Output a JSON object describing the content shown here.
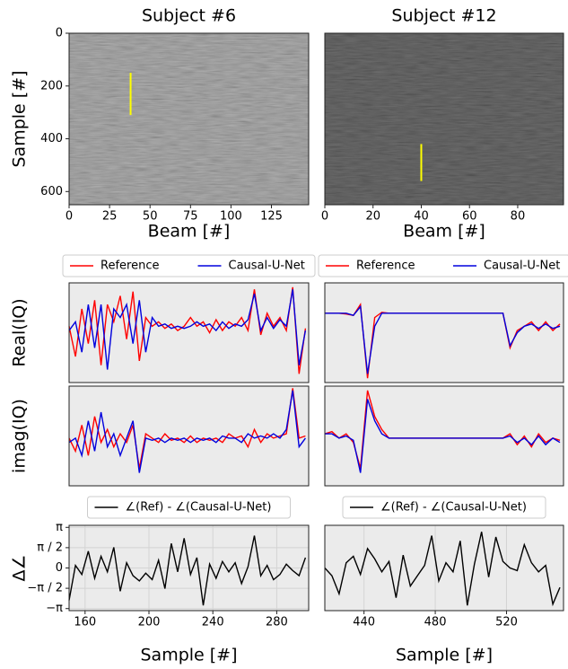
{
  "chart_data": [
    {
      "type": "image",
      "title": "Subject #6",
      "xlabel": "Beam [#]",
      "ylabel": "Sample [#]",
      "xlim": [
        0,
        148
      ],
      "ylim": [
        650,
        0
      ],
      "xticks": [
        0,
        25,
        50,
        75,
        100,
        125
      ],
      "yticks": [
        0,
        200,
        400,
        600
      ],
      "marker": {
        "x": 38,
        "y": [
          150,
          310
        ],
        "color": "#ffff00"
      },
      "shade": "#8a8a8a"
    },
    {
      "type": "image",
      "title": "Subject #12",
      "xlabel": "Beam [#]",
      "xlim": [
        0,
        99
      ],
      "ylim": [
        650,
        0
      ],
      "xticks": [
        0,
        20,
        40,
        60,
        80
      ],
      "marker": {
        "x": 40,
        "y": [
          420,
          560
        ],
        "color": "#ffff00"
      },
      "shade": "#3a3a3a"
    },
    {
      "type": "line",
      "ylabel": "Real(IQ)",
      "legend": true,
      "xlim": [
        150,
        300
      ],
      "ylim": [
        -1.2,
        1.1
      ],
      "x": [
        150,
        154,
        158,
        162,
        166,
        170,
        174,
        178,
        182,
        186,
        190,
        194,
        198,
        202,
        206,
        210,
        214,
        218,
        222,
        226,
        230,
        234,
        238,
        242,
        246,
        250,
        254,
        258,
        262,
        266,
        270,
        274,
        278,
        282,
        286,
        290,
        294,
        298
      ],
      "series": [
        {
          "name": "Reference",
          "color": "#ff0000",
          "values": [
            0.1,
            -0.6,
            0.5,
            -0.3,
            0.7,
            -0.8,
            0.6,
            0.2,
            0.8,
            -0.2,
            0.9,
            -0.7,
            0.3,
            0.1,
            0.2,
            0.05,
            0.15,
            0.0,
            0.1,
            0.3,
            0.1,
            0.2,
            -0.05,
            0.25,
            0.0,
            0.2,
            0.1,
            0.3,
            0.0,
            0.95,
            -0.1,
            0.4,
            0.1,
            0.3,
            0.0,
            1.0,
            -1.0,
            0.05
          ]
        },
        {
          "name": "Causal-U-Net",
          "color": "#0000dd",
          "values": [
            0.0,
            0.2,
            -0.5,
            0.6,
            -0.4,
            0.6,
            -0.9,
            0.5,
            0.3,
            0.6,
            -0.3,
            0.7,
            -0.5,
            0.3,
            0.1,
            0.15,
            0.05,
            0.1,
            0.05,
            0.1,
            0.2,
            0.1,
            0.15,
            0.0,
            0.2,
            0.05,
            0.15,
            0.1,
            0.25,
            0.85,
            0.0,
            0.3,
            0.05,
            0.25,
            0.1,
            0.95,
            -0.8,
            0.0
          ]
        }
      ]
    },
    {
      "type": "line",
      "legend": true,
      "xlim": [
        418,
        552
      ],
      "ylim": [
        -1.2,
        1.1
      ],
      "x": [
        418,
        422,
        426,
        430,
        434,
        438,
        442,
        446,
        450,
        454,
        458,
        462,
        466,
        470,
        474,
        478,
        482,
        486,
        490,
        494,
        498,
        502,
        506,
        510,
        514,
        518,
        522,
        526,
        530,
        534,
        538,
        542,
        546,
        550
      ],
      "series": [
        {
          "name": "Reference",
          "color": "#ff0000",
          "values": [
            0.4,
            0.4,
            0.4,
            0.38,
            0.35,
            0.6,
            -1.1,
            0.3,
            0.42,
            0.4,
            0.4,
            0.4,
            0.4,
            0.4,
            0.4,
            0.4,
            0.4,
            0.4,
            0.4,
            0.4,
            0.4,
            0.4,
            0.4,
            0.4,
            0.4,
            0.4,
            -0.4,
            0.0,
            0.1,
            0.2,
            0.0,
            0.2,
            0.0,
            0.15
          ]
        },
        {
          "name": "Causal-U-Net",
          "color": "#0000dd",
          "values": [
            0.4,
            0.4,
            0.4,
            0.4,
            0.35,
            0.55,
            -1.0,
            0.1,
            0.4,
            0.4,
            0.4,
            0.4,
            0.4,
            0.4,
            0.4,
            0.4,
            0.4,
            0.4,
            0.4,
            0.4,
            0.4,
            0.4,
            0.4,
            0.4,
            0.4,
            0.4,
            -0.35,
            -0.05,
            0.1,
            0.15,
            0.05,
            0.15,
            0.05,
            0.1
          ]
        }
      ]
    },
    {
      "type": "line",
      "ylabel": "imag(IQ)",
      "xlim": [
        150,
        300
      ],
      "ylim": [
        -1.0,
        1.3
      ],
      "x": [
        150,
        154,
        158,
        162,
        166,
        170,
        174,
        178,
        182,
        186,
        190,
        194,
        198,
        202,
        206,
        210,
        214,
        218,
        222,
        226,
        230,
        234,
        238,
        242,
        246,
        250,
        254,
        258,
        262,
        266,
        270,
        274,
        278,
        282,
        286,
        290,
        294,
        298
      ],
      "series": [
        {
          "name": "Reference",
          "color": "#ff0000",
          "values": [
            0.1,
            -0.2,
            0.4,
            -0.3,
            0.6,
            0.0,
            0.3,
            -0.1,
            0.2,
            0.0,
            0.4,
            -0.6,
            0.2,
            0.1,
            0.0,
            0.2,
            0.05,
            0.1,
            0.0,
            0.15,
            0.0,
            0.1,
            0.05,
            0.1,
            0.0,
            0.2,
            0.1,
            0.15,
            -0.1,
            0.3,
            0.0,
            0.2,
            0.1,
            0.15,
            0.2,
            1.25,
            0.1,
            0.15
          ]
        },
        {
          "name": "Causal-U-Net",
          "color": "#0000dd",
          "values": [
            0.0,
            0.1,
            -0.3,
            0.5,
            -0.2,
            0.7,
            -0.1,
            0.2,
            -0.3,
            0.1,
            0.5,
            -0.7,
            0.1,
            0.05,
            0.1,
            0.0,
            0.1,
            0.05,
            0.1,
            0.0,
            0.1,
            0.05,
            0.1,
            0.0,
            0.15,
            0.1,
            0.1,
            0.0,
            0.2,
            0.1,
            0.15,
            0.1,
            0.2,
            0.1,
            0.3,
            1.2,
            -0.1,
            0.1
          ]
        }
      ]
    },
    {
      "type": "line",
      "xlim": [
        418,
        552
      ],
      "ylim": [
        -1.0,
        1.3
      ],
      "x": [
        418,
        422,
        426,
        430,
        434,
        438,
        442,
        446,
        450,
        454,
        458,
        462,
        466,
        470,
        474,
        478,
        482,
        486,
        490,
        494,
        498,
        502,
        506,
        510,
        514,
        518,
        522,
        526,
        530,
        534,
        538,
        542,
        546,
        550
      ],
      "series": [
        {
          "name": "Reference",
          "color": "#ff0000",
          "values": [
            0.2,
            0.25,
            0.1,
            0.2,
            0.0,
            -0.6,
            1.2,
            0.6,
            0.3,
            0.1,
            0.1,
            0.1,
            0.1,
            0.1,
            0.1,
            0.1,
            0.1,
            0.1,
            0.1,
            0.1,
            0.1,
            0.1,
            0.1,
            0.1,
            0.1,
            0.1,
            0.2,
            -0.05,
            0.15,
            -0.1,
            0.2,
            0.0,
            0.1,
            0.05
          ]
        },
        {
          "name": "Causal-U-Net",
          "color": "#0000dd",
          "values": [
            0.2,
            0.2,
            0.1,
            0.15,
            0.05,
            -0.7,
            1.0,
            0.5,
            0.2,
            0.1,
            0.1,
            0.1,
            0.1,
            0.1,
            0.1,
            0.1,
            0.1,
            0.1,
            0.1,
            0.1,
            0.1,
            0.1,
            0.1,
            0.1,
            0.1,
            0.1,
            0.15,
            0.0,
            0.1,
            -0.05,
            0.15,
            -0.05,
            0.1,
            0.0
          ]
        }
      ]
    },
    {
      "type": "line",
      "ylabel": "Δ∠",
      "xlabel": "Sample [#]",
      "legend": true,
      "xlim": [
        150,
        300
      ],
      "ylim": [
        -3.3,
        3.3
      ],
      "xticks": [
        160,
        200,
        240,
        280
      ],
      "yticks": [
        {
          "value": 3.1416,
          "label": "π"
        },
        {
          "value": 1.5708,
          "label": "π / 2"
        },
        0,
        {
          "value": -1.5708,
          "label": "−π / 2"
        },
        {
          "value": -3.1416,
          "label": "−π"
        }
      ],
      "x": [
        150,
        154,
        158,
        162,
        166,
        170,
        174,
        178,
        182,
        186,
        190,
        194,
        198,
        202,
        206,
        210,
        214,
        218,
        222,
        226,
        230,
        234,
        238,
        242,
        246,
        250,
        254,
        258,
        262,
        266,
        270,
        274,
        278,
        282,
        286,
        290,
        294,
        298
      ],
      "series": [
        {
          "name": "∠(Ref) - ∠(Causal-U-Net)",
          "color": "#000000",
          "values": [
            -2.5,
            0.2,
            -0.5,
            1.3,
            -0.8,
            0.9,
            -0.3,
            1.6,
            -1.8,
            0.4,
            -0.6,
            -1.0,
            -0.4,
            -0.9,
            0.6,
            -1.6,
            1.9,
            -0.3,
            2.3,
            -0.5,
            0.8,
            -2.9,
            0.3,
            -0.8,
            0.5,
            -0.3,
            0.4,
            -1.2,
            0.1,
            2.5,
            -0.6,
            0.2,
            -0.9,
            -0.5,
            0.3,
            -0.2,
            -0.6,
            0.8
          ]
        }
      ]
    },
    {
      "type": "line",
      "xlabel": "Sample [#]",
      "legend": true,
      "xlim": [
        418,
        552
      ],
      "ylim": [
        -3.3,
        3.3
      ],
      "xticks": [
        440,
        480,
        520
      ],
      "x": [
        418,
        422,
        426,
        430,
        434,
        438,
        442,
        446,
        450,
        454,
        458,
        462,
        466,
        470,
        474,
        478,
        482,
        486,
        490,
        494,
        498,
        502,
        506,
        510,
        514,
        518,
        522,
        526,
        530,
        534,
        538,
        542,
        546,
        550
      ],
      "series": [
        {
          "name": "∠(Ref) - ∠(Causal-U-Net)",
          "color": "#000000",
          "values": [
            0.0,
            -0.6,
            -2.0,
            0.4,
            0.9,
            -0.5,
            1.5,
            0.7,
            -0.3,
            0.5,
            -2.3,
            1.0,
            -1.4,
            -0.6,
            0.2,
            2.5,
            -1.0,
            0.4,
            -0.3,
            2.1,
            -2.9,
            0.3,
            2.8,
            -0.7,
            2.4,
            0.5,
            0.0,
            -0.2,
            1.8,
            0.4,
            -0.3,
            0.2,
            -2.8,
            -1.5
          ]
        }
      ]
    }
  ]
}
